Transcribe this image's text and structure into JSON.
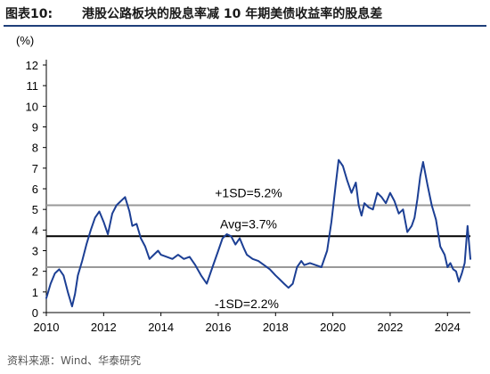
{
  "header": {
    "title_prefix": "图表10:",
    "title_text": "港股公路板块的股息率减 10 年期美债收益率的股息差"
  },
  "source": "资料来源：Wind、华泰研究",
  "colors": {
    "series": "#1c3f94",
    "avg_line": "#000000",
    "sd_line": "#999999",
    "title_rule": "#1f3f7a"
  },
  "chart_data": {
    "type": "line",
    "unit_label": "(%)",
    "x_ticks": [
      2010,
      2012,
      2014,
      2016,
      2018,
      2020,
      2022,
      2024
    ],
    "xlim": [
      2010,
      2024.8
    ],
    "y_ticks": [
      0,
      1,
      2,
      3,
      4,
      5,
      6,
      7,
      8,
      9,
      10,
      11,
      12
    ],
    "ylim": [
      0,
      12
    ],
    "grid": false,
    "series": [
      {
        "name": "",
        "x": [
          2010.0,
          2010.15,
          2010.3,
          2010.45,
          2010.6,
          2010.75,
          2010.9,
          2011.0,
          2011.1,
          2011.25,
          2011.4,
          2011.55,
          2011.7,
          2011.85,
          2012.0,
          2012.15,
          2012.3,
          2012.45,
          2012.6,
          2012.75,
          2012.9,
          2013.0,
          2013.15,
          2013.3,
          2013.45,
          2013.6,
          2013.75,
          2013.9,
          2014.0,
          2014.2,
          2014.4,
          2014.6,
          2014.8,
          2015.0,
          2015.2,
          2015.4,
          2015.6,
          2015.8,
          2016.0,
          2016.15,
          2016.3,
          2016.45,
          2016.6,
          2016.75,
          2016.9,
          2017.0,
          2017.2,
          2017.4,
          2017.6,
          2017.8,
          2018.0,
          2018.15,
          2018.3,
          2018.45,
          2018.6,
          2018.75,
          2018.9,
          2019.0,
          2019.2,
          2019.4,
          2019.6,
          2019.8,
          2019.95,
          2020.0,
          2020.1,
          2020.2,
          2020.35,
          2020.5,
          2020.65,
          2020.8,
          2020.9,
          2021.0,
          2021.1,
          2021.25,
          2021.4,
          2021.55,
          2021.7,
          2021.85,
          2022.0,
          2022.15,
          2022.3,
          2022.45,
          2022.6,
          2022.75,
          2022.85,
          2022.95,
          2023.05,
          2023.15,
          2023.3,
          2023.45,
          2023.6,
          2023.75,
          2023.9,
          2024.0,
          2024.1,
          2024.2,
          2024.3,
          2024.4,
          2024.5,
          2024.6,
          2024.7,
          2024.8
        ],
        "y": [
          0.7,
          1.4,
          1.9,
          2.1,
          1.8,
          1.0,
          0.3,
          0.9,
          1.8,
          2.5,
          3.3,
          4.0,
          4.6,
          4.9,
          4.4,
          3.8,
          4.8,
          5.2,
          5.4,
          5.6,
          4.9,
          4.2,
          4.3,
          3.6,
          3.2,
          2.6,
          2.8,
          3.0,
          2.8,
          2.7,
          2.6,
          2.8,
          2.6,
          2.7,
          2.3,
          1.8,
          1.4,
          2.2,
          3.0,
          3.6,
          3.8,
          3.7,
          3.3,
          3.6,
          3.1,
          2.8,
          2.6,
          2.5,
          2.3,
          2.1,
          1.8,
          1.6,
          1.4,
          1.2,
          1.4,
          2.2,
          2.5,
          2.3,
          2.4,
          2.3,
          2.2,
          3.0,
          4.4,
          5.0,
          6.2,
          7.4,
          7.1,
          6.4,
          5.8,
          6.3,
          5.2,
          4.7,
          5.3,
          5.1,
          5.0,
          5.8,
          5.6,
          5.3,
          5.8,
          5.4,
          4.8,
          5.0,
          3.9,
          4.2,
          4.6,
          5.5,
          6.6,
          7.3,
          6.2,
          5.2,
          4.5,
          3.2,
          2.8,
          2.2,
          2.4,
          2.1,
          2.0,
          1.5,
          1.9,
          2.4,
          4.2,
          2.6
        ]
      }
    ],
    "reference_lines": [
      {
        "label": "+1SD=5.2%",
        "value": 5.2,
        "style": "sd"
      },
      {
        "label": "Avg=3.7%",
        "value": 3.7,
        "style": "avg"
      },
      {
        "label": "-1SD=2.2%",
        "value": 2.2,
        "style": "sd"
      }
    ]
  }
}
